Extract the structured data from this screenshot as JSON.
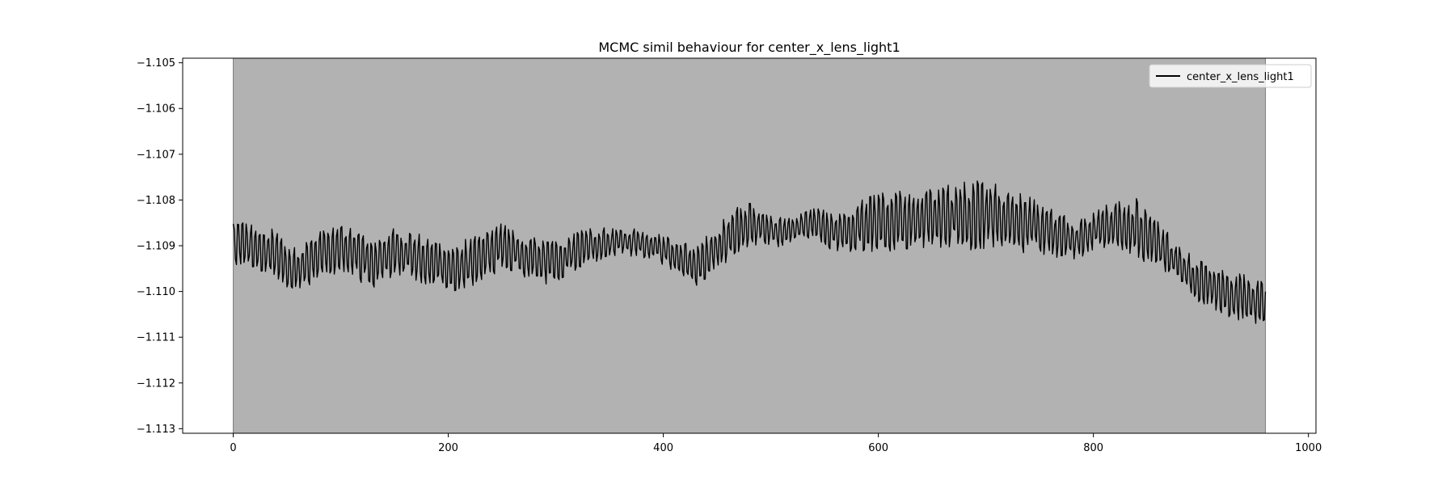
{
  "chart_data": {
    "type": "line",
    "title": "MCMC simil behaviour for center_x_lens_light1",
    "xlabel": "",
    "ylabel": "",
    "xlim": [
      -47,
      1007
    ],
    "ylim": [
      -1.1131,
      -1.1049
    ],
    "x_ticks": [
      0,
      200,
      400,
      600,
      800,
      1000
    ],
    "y_ticks": [
      -1.105,
      -1.106,
      -1.107,
      -1.108,
      -1.109,
      -1.11,
      -1.111,
      -1.112,
      -1.113
    ],
    "x_tick_labels": [
      "0",
      "200",
      "400",
      "600",
      "800",
      "1000"
    ],
    "y_tick_labels": [
      "−1.105",
      "−1.106",
      "−1.107",
      "−1.108",
      "−1.109",
      "−1.110",
      "−1.111",
      "−1.112",
      "−1.113"
    ],
    "shaded_region": {
      "x_start": 0,
      "x_end": 960,
      "color": "#b2b2b2"
    },
    "grid": false,
    "legend": {
      "position": "top-right"
    },
    "series": [
      {
        "name": "center_x_lens_light1",
        "color": "#000000",
        "n_points": 961,
        "trend": {
          "x": [
            0,
            20,
            40,
            55,
            75,
            100,
            130,
            150,
            180,
            200,
            230,
            250,
            270,
            300,
            330,
            360,
            390,
            420,
            430,
            450,
            480,
            510,
            540,
            560,
            600,
            650,
            700,
            750,
            780,
            810,
            840,
            870,
            900,
            930,
            960
          ],
          "y": [
            -1.1089,
            -1.109,
            -1.1092,
            -1.1096,
            -1.1093,
            -1.109,
            -1.1094,
            -1.1091,
            -1.1093,
            -1.1095,
            -1.1093,
            -1.109,
            -1.1092,
            -1.1094,
            -1.109,
            -1.1089,
            -1.109,
            -1.1093,
            -1.1095,
            -1.109,
            -1.1085,
            -1.1087,
            -1.1085,
            -1.1087,
            -1.1085,
            -1.1084,
            -1.1083,
            -1.1086,
            -1.1089,
            -1.1086,
            -1.1086,
            -1.1092,
            -1.1098,
            -1.1101,
            -1.1102
          ]
        },
        "amplitude": {
          "x": [
            0,
            50,
            100,
            200,
            300,
            350,
            400,
            430,
            470,
            520,
            560,
            600,
            650,
            700,
            750,
            800,
            840,
            880,
            960
          ],
          "y": [
            0.00045,
            0.0005,
            0.0005,
            0.0005,
            0.00045,
            0.0003,
            0.0003,
            0.0004,
            0.0005,
            0.00025,
            0.0004,
            0.0006,
            0.0006,
            0.00075,
            0.00055,
            0.0004,
            0.0006,
            0.0004,
            0.0005
          ]
        }
      }
    ]
  }
}
